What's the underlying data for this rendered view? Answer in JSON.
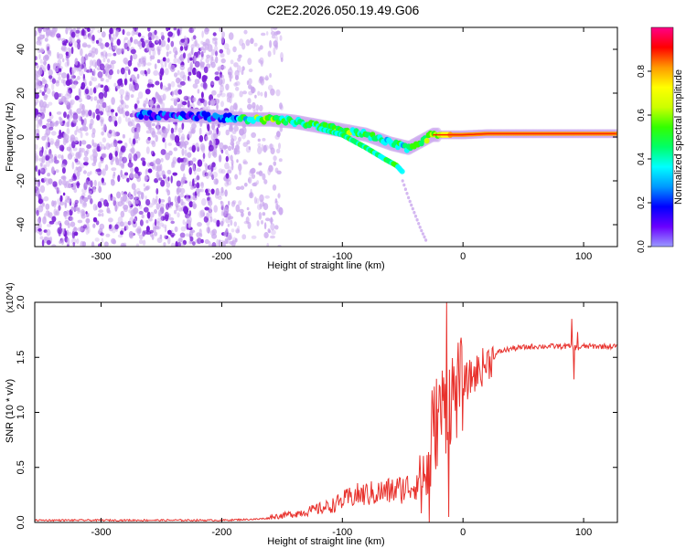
{
  "page": {
    "title": "C2E2.2026.050.19.49.G06"
  },
  "colors": {
    "purple": "#7a1fd8",
    "light_purple": "#c9a6ee",
    "snr_line": "#e8322d",
    "axis": "#000000"
  },
  "chart_data": [
    {
      "type": "heatmap",
      "title": "",
      "xlabel": "Height of straight line (km)",
      "ylabel": "Frequency (Hz)",
      "xlim": [
        -355,
        128
      ],
      "ylim": [
        -50,
        50
      ],
      "xticks": [
        -300,
        -200,
        -100,
        0,
        100
      ],
      "yticks": [
        -40,
        -20,
        0,
        20,
        40
      ],
      "colorbar": {
        "label": "Normalized spectral amplitude",
        "range": [
          0,
          1
        ],
        "ticks": [
          0.0,
          0.2,
          0.4,
          0.6,
          0.8
        ],
        "colormap": [
          "#9a9aff",
          "#6a00ff",
          "#0000ff",
          "#0099ff",
          "#00ffff",
          "#00ff66",
          "#33ff00",
          "#ccff00",
          "#ffff00",
          "#ff9900",
          "#ff0000",
          "#ff0088"
        ]
      },
      "noise_region_x": [
        -355,
        -150
      ],
      "ridge": {
        "x": [
          -270,
          -230,
          -200,
          -180,
          -160,
          -140,
          -120,
          -100,
          -80,
          -60,
          -45,
          -35,
          -25,
          -10,
          0,
          20,
          50,
          80,
          100,
          128
        ],
        "freq": [
          10,
          10,
          9,
          8,
          8,
          7,
          5,
          3,
          1,
          -3,
          -5,
          -2,
          1,
          1,
          1,
          1.5,
          1.5,
          1.5,
          1.5,
          1.5
        ],
        "amplitude": [
          0.2,
          0.25,
          0.25,
          0.45,
          0.6,
          0.5,
          0.55,
          0.55,
          0.5,
          0.45,
          0.5,
          0.55,
          0.6,
          0.85,
          0.85,
          0.9,
          0.9,
          0.9,
          0.9,
          0.85
        ]
      },
      "secondary_branches": [
        {
          "x": [
            -120,
            -100,
            -80,
            -65,
            -55,
            -50
          ],
          "freq": [
            4,
            1,
            -5,
            -10,
            -13,
            -16
          ]
        },
        {
          "x": [
            -50,
            -45,
            -40,
            -35,
            -30
          ],
          "freq": [
            -20,
            -28,
            -35,
            -42,
            -48
          ]
        }
      ]
    },
    {
      "type": "line",
      "title": "",
      "xlabel": "Height of straight line (km)",
      "ylabel": "SNR (10 * v/v)",
      "y_multiplier": "(x10^4)",
      "xlim": [
        -355,
        128
      ],
      "ylim": [
        0,
        2.0
      ],
      "xticks": [
        -300,
        -200,
        -100,
        0,
        100
      ],
      "yticks": [
        0.0,
        0.5,
        1.0,
        1.5,
        2.0
      ],
      "series": [
        {
          "x": [
            -355,
            -300,
            -250,
            -200,
            -170,
            -150,
            -130,
            -110,
            -100,
            -90,
            -70,
            -50,
            -40,
            -30,
            -25,
            -20,
            -15,
            -10,
            -5,
            0,
            10,
            20,
            30,
            40,
            60,
            80,
            90,
            95,
            100,
            110,
            128
          ],
          "y": [
            0.02,
            0.02,
            0.02,
            0.02,
            0.03,
            0.05,
            0.08,
            0.12,
            0.16,
            0.2,
            0.22,
            0.25,
            0.28,
            0.45,
            0.8,
            1.0,
            1.05,
            1.15,
            1.2,
            1.25,
            1.35,
            1.45,
            1.55,
            1.58,
            1.6,
            1.6,
            1.6,
            1.58,
            1.6,
            1.6,
            1.6
          ]
        }
      ],
      "spikes": [
        {
          "x": -14,
          "y": 2.0
        },
        {
          "x": -20,
          "y": 1.25
        },
        {
          "x": -26,
          "y": 1.2
        },
        {
          "x": -28,
          "y": 0.0
        },
        {
          "x": -12,
          "y": 0.05
        },
        {
          "x": 90,
          "y": 1.85
        },
        {
          "x": 92,
          "y": 1.3
        },
        {
          "x": 95,
          "y": 1.73
        }
      ]
    }
  ]
}
